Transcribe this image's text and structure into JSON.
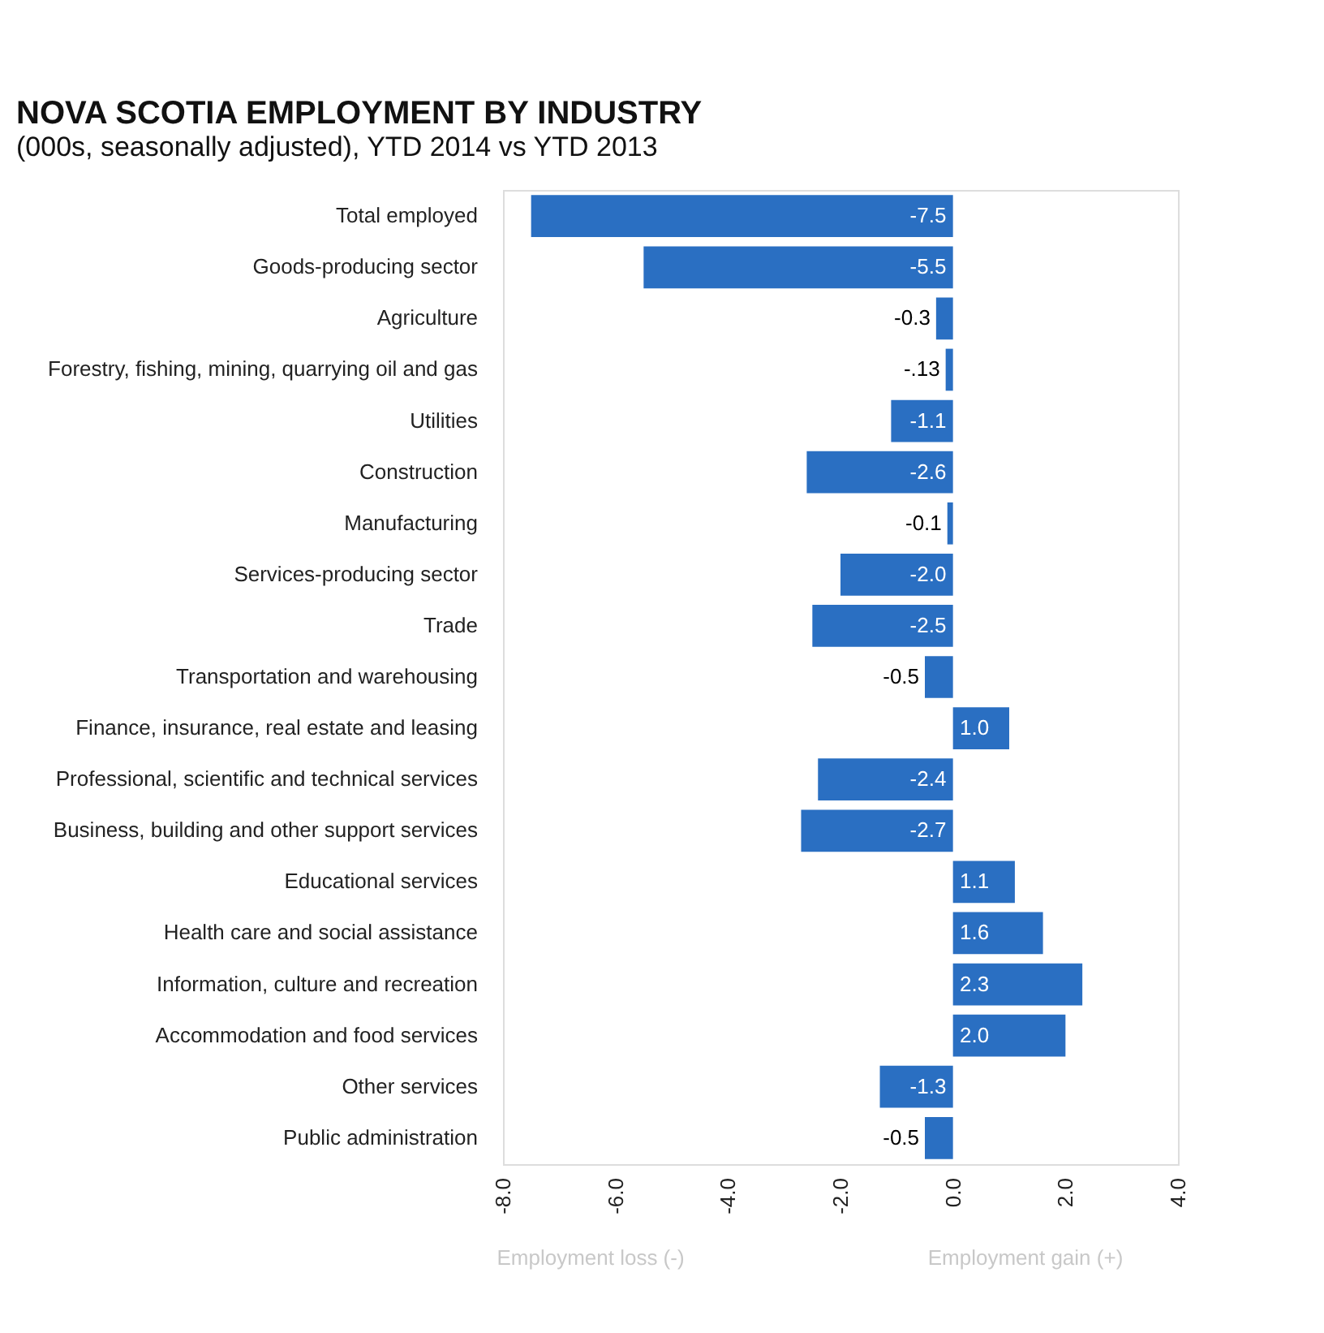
{
  "chart_data": {
    "type": "bar",
    "orientation": "horizontal",
    "title": "NOVA SCOTIA EMPLOYMENT BY INDUSTRY",
    "subtitle": "(000s, seasonally adjusted), YTD 2014 vs YTD 2013",
    "categories": [
      "Total employed",
      "Goods-producing sector",
      "Agriculture",
      "Forestry, fishing, mining, quarrying oil and gas",
      "Utilities",
      "Construction",
      "Manufacturing",
      "Services-producing sector",
      "Trade",
      "Transportation and warehousing",
      "Finance, insurance, real estate and leasing",
      "Professional, scientific and technical services",
      "Business, building and other support services",
      "Educational services",
      "Health care and social assistance",
      "Information, culture and recreation",
      "Accommodation and food services",
      "Other services",
      "Public administration"
    ],
    "values": [
      -7.5,
      -5.5,
      -0.3,
      -0.13,
      -1.1,
      -2.6,
      -0.1,
      -2.0,
      -2.5,
      -0.5,
      1.0,
      -2.4,
      -2.7,
      1.1,
      1.6,
      2.3,
      2.0,
      -1.3,
      -0.5
    ],
    "value_labels": [
      "-7.5",
      "-5.5",
      "-0.3",
      "-.13",
      "-1.1",
      "-2.6",
      "-0.1",
      "-2.0",
      "-2.5",
      "-0.5",
      "1.0",
      "-2.4",
      "-2.7",
      "1.1",
      "1.6",
      "2.3",
      "2.0",
      "-1.3",
      "-0.5"
    ],
    "color": "#2a6fc2",
    "xlim": [
      -8,
      4
    ],
    "xticks": [
      {
        "value": -8,
        "label": "-8.0"
      },
      {
        "value": -6,
        "label": "-6.0"
      },
      {
        "value": -4,
        "label": "-4.0"
      },
      {
        "value": -2,
        "label": "-2.0"
      },
      {
        "value": 0,
        "label": "0.0"
      },
      {
        "value": 2,
        "label": "2.0"
      },
      {
        "value": 4,
        "label": "4.0"
      }
    ],
    "annotations": [
      "Employment loss (-)",
      "Employment gain (+)"
    ],
    "grid": false
  }
}
